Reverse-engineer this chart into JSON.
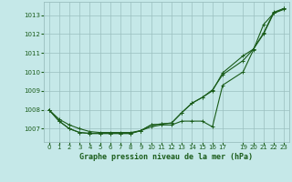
{
  "title": "Graphe pression niveau de la mer (hPa)",
  "bg_color": "#c5e8e8",
  "plot_bg_color": "#c5e8e8",
  "grid_color": "#9bbfbf",
  "line_color": "#1a5c1a",
  "text_color": "#1a5c1a",
  "xlim": [
    -0.5,
    23.5
  ],
  "ylim": [
    1006.3,
    1013.7
  ],
  "yticks": [
    1007,
    1008,
    1009,
    1010,
    1011,
    1012,
    1013
  ],
  "xticks": [
    0,
    1,
    2,
    3,
    4,
    5,
    6,
    7,
    8,
    9,
    10,
    11,
    12,
    13,
    14,
    15,
    16,
    17,
    19,
    20,
    21,
    22,
    23
  ],
  "xticklabels": [
    "0",
    "1",
    "2",
    "3",
    "4",
    "5",
    "6",
    "7",
    "8",
    "9",
    "10",
    "11",
    "12",
    "13",
    "14",
    "15",
    "16",
    "17",
    "19",
    "20",
    "21",
    "22",
    "23"
  ],
  "line1_x": [
    0,
    1,
    2,
    3,
    4,
    5,
    6,
    7,
    8,
    9,
    10,
    11,
    12,
    13,
    14,
    15,
    16,
    17,
    19,
    20,
    21,
    22,
    23
  ],
  "line1_y": [
    1008.0,
    1007.5,
    1007.2,
    1007.0,
    1006.85,
    1006.8,
    1006.8,
    1006.8,
    1006.8,
    1006.9,
    1007.1,
    1007.2,
    1007.2,
    1007.4,
    1007.4,
    1007.4,
    1007.1,
    1009.3,
    1010.0,
    1011.15,
    1012.5,
    1013.1,
    1013.35
  ],
  "line2_x": [
    0,
    1,
    2,
    3,
    4,
    5,
    6,
    7,
    8,
    9,
    10,
    11,
    12,
    13,
    14,
    15,
    16,
    17,
    19,
    20,
    21,
    22,
    23
  ],
  "line2_y": [
    1008.0,
    1007.4,
    1007.0,
    1006.8,
    1006.75,
    1006.75,
    1006.75,
    1006.75,
    1006.75,
    1006.9,
    1007.2,
    1007.25,
    1007.3,
    1007.85,
    1008.35,
    1008.65,
    1009.0,
    1009.95,
    1010.85,
    1011.2,
    1012.0,
    1013.1,
    1013.3
  ],
  "line3_x": [
    0,
    1,
    2,
    3,
    4,
    5,
    6,
    7,
    8,
    9,
    10,
    11,
    12,
    13,
    14,
    15,
    16,
    17,
    19,
    20,
    21,
    22,
    23
  ],
  "line3_y": [
    1008.0,
    1007.4,
    1007.0,
    1006.8,
    1006.75,
    1006.75,
    1006.75,
    1006.75,
    1006.75,
    1006.9,
    1007.2,
    1007.25,
    1007.3,
    1007.85,
    1008.35,
    1008.65,
    1009.05,
    1009.85,
    1010.6,
    1011.2,
    1012.05,
    1013.15,
    1013.35
  ],
  "ylabel_fontsize": 5.5,
  "xlabel_fontsize": 6.0,
  "tick_fontsize": 5.0
}
